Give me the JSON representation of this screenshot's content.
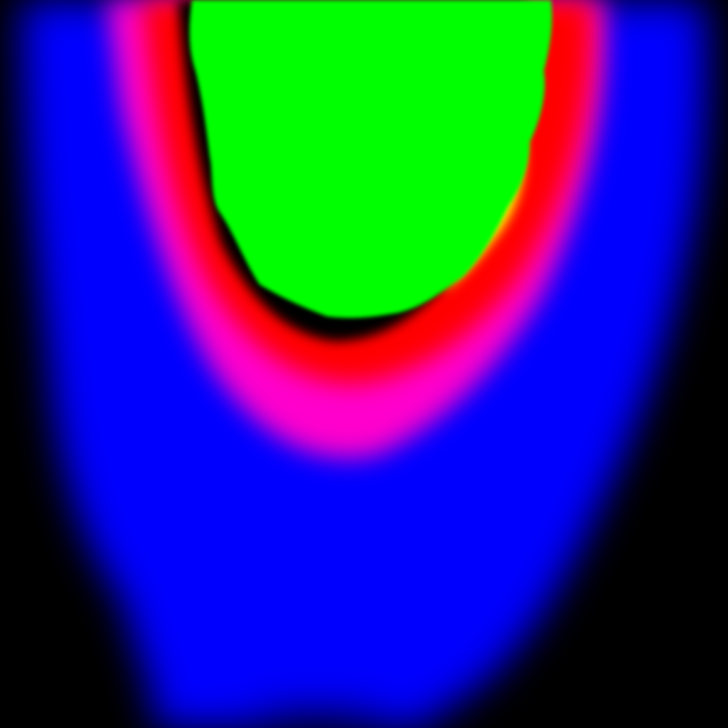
{
  "image": {
    "kind": "false-color segmentation map",
    "background_color": "#000000",
    "regions": [
      {
        "name": "outer-region",
        "color": "#0000ff"
      },
      {
        "name": "middle-band",
        "color": "#ff00cc"
      },
      {
        "name": "inner-band",
        "color": "#ff0000"
      },
      {
        "name": "core-region",
        "color": "#00ff00"
      },
      {
        "name": "core-edge-highlight",
        "color": "#ffff00"
      }
    ]
  }
}
